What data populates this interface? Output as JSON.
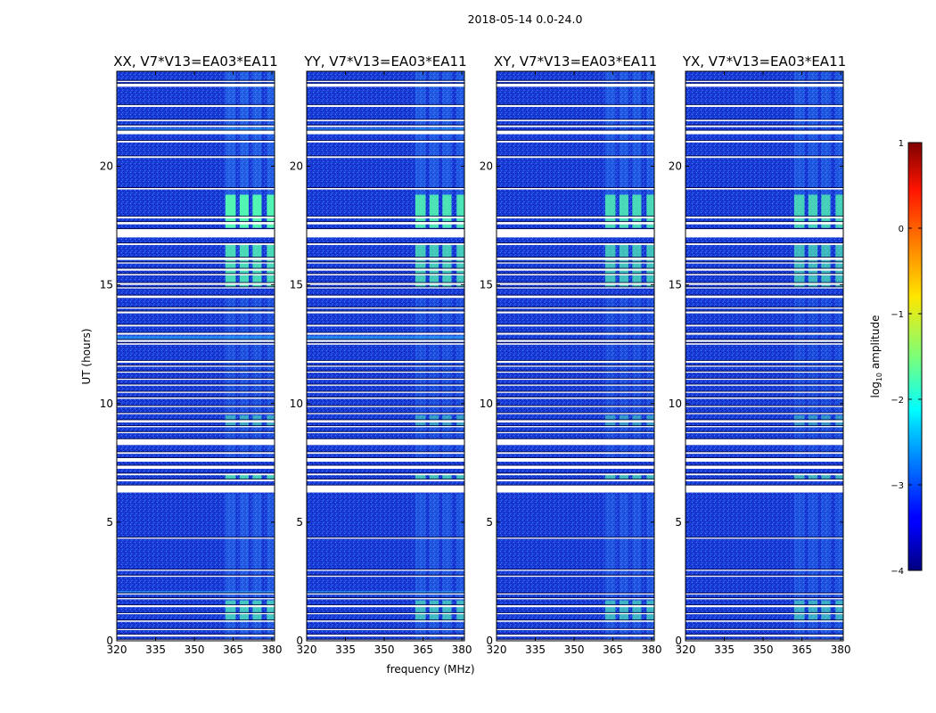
{
  "chart_data": {
    "type": "heatmap",
    "suptitle": "2018-05-14 0.0-24.0",
    "xlabel": "frequency (MHz)",
    "ylabel": "UT (hours)",
    "xlim": [
      320,
      381
    ],
    "ylim": [
      0,
      24
    ],
    "xticks": [
      320,
      335,
      350,
      365,
      380
    ],
    "yticks": [
      0,
      5,
      10,
      15,
      20
    ],
    "panels": [
      {
        "title": "XX, V7*V13=EA03*EA11",
        "key": "XX"
      },
      {
        "title": "YY, V7*V13=EA03*EA11",
        "key": "YY"
      },
      {
        "title": "XY, V7*V13=EA03*EA11",
        "key": "XY"
      },
      {
        "title": "YX, V7*V13=EA03*EA11",
        "key": "YX"
      }
    ],
    "flagged_ut_ranges": [
      [
        0.0,
        0.05
      ],
      [
        0.18,
        0.26
      ],
      [
        0.45,
        0.5
      ],
      [
        0.8,
        0.86
      ],
      [
        1.12,
        1.17
      ],
      [
        1.42,
        1.5
      ],
      [
        1.75,
        1.8
      ],
      [
        1.95,
        2.0
      ],
      [
        2.7,
        2.75
      ],
      [
        2.95,
        3.0
      ],
      [
        4.3,
        4.35
      ],
      [
        6.25,
        6.55
      ],
      [
        6.72,
        6.8
      ],
      [
        6.98,
        7.05
      ],
      [
        7.25,
        7.38
      ],
      [
        7.55,
        7.7
      ],
      [
        7.88,
        7.95
      ],
      [
        8.25,
        8.5
      ],
      [
        8.75,
        8.8
      ],
      [
        9.0,
        9.05
      ],
      [
        9.2,
        9.3
      ],
      [
        9.55,
        9.6
      ],
      [
        9.85,
        9.9
      ],
      [
        10.2,
        10.26
      ],
      [
        10.45,
        10.5
      ],
      [
        10.75,
        10.8
      ],
      [
        11.0,
        11.05
      ],
      [
        11.3,
        11.35
      ],
      [
        11.55,
        11.6
      ],
      [
        11.72,
        11.8
      ],
      [
        12.48,
        12.54
      ],
      [
        12.6,
        12.68
      ],
      [
        12.9,
        12.98
      ],
      [
        13.25,
        13.32
      ],
      [
        13.8,
        13.88
      ],
      [
        14.0,
        14.05
      ],
      [
        14.45,
        14.55
      ],
      [
        14.85,
        14.9
      ],
      [
        15.0,
        15.08
      ],
      [
        15.4,
        15.46
      ],
      [
        15.6,
        15.68
      ],
      [
        15.9,
        15.95
      ],
      [
        16.05,
        16.15
      ],
      [
        16.68,
        16.75
      ],
      [
        17.0,
        17.35
      ],
      [
        17.55,
        17.65
      ],
      [
        17.8,
        17.88
      ],
      [
        19.02,
        19.08
      ],
      [
        20.35,
        20.42
      ],
      [
        21.0,
        21.07
      ],
      [
        21.35,
        21.5
      ],
      [
        21.65,
        21.72
      ],
      [
        21.9,
        21.96
      ],
      [
        22.5,
        22.58
      ],
      [
        23.35,
        23.48
      ],
      [
        23.55,
        23.6
      ]
    ],
    "emission_bands_mhz": [
      [
        362,
        366
      ],
      [
        367.5,
        371
      ],
      [
        372.5,
        376
      ],
      [
        378,
        381
      ]
    ],
    "colorbar": {
      "label": "log10 amplitude",
      "label_main": "log",
      "label_sub": "10",
      "label_rest": " amplitude",
      "range": [
        -4,
        1
      ],
      "ticks": [
        1,
        0,
        -1,
        -2,
        -3,
        -4
      ],
      "colormap": "jet"
    }
  }
}
